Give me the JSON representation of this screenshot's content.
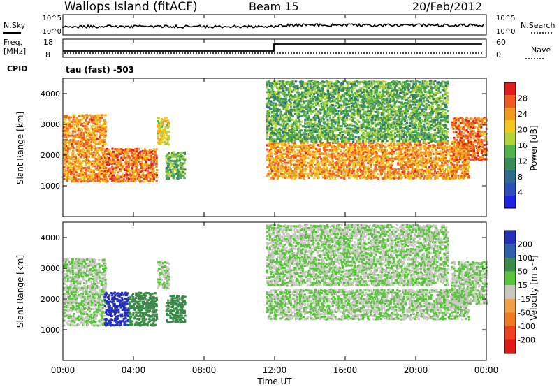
{
  "header": {
    "title": "Wallops Island (fitACF)",
    "beam": "Beam 15",
    "date": "20/Feb/2012"
  },
  "strips": {
    "nsky_label": "N.Sky",
    "nsky_ticks": [
      "10^5",
      "10^0"
    ],
    "nsearch_label": "N.Search",
    "nsearch_ticks": [
      "10^5",
      "10^0"
    ],
    "freq_label_1": "Freq.",
    "freq_label_2": "[MHz]",
    "freq_ticks": [
      "18",
      "8"
    ],
    "nave_label": "Nave",
    "nave_ticks": [
      "60",
      "0"
    ],
    "cpid_label": "CPID",
    "cpid_value": "tau (fast) -503"
  },
  "colors": {
    "power": [
      "#1f23e0",
      "#2a4fb8",
      "#2e6a8c",
      "#3c8c5a",
      "#52b34a",
      "#b4d23c",
      "#f2c81e",
      "#f29a1e",
      "#ef5a1e",
      "#e21b1b"
    ],
    "velocity": [
      "#2430b8",
      "#2f5fa8",
      "#3a8a48",
      "#57c43a",
      "#c8c8c0",
      "#f0a048",
      "#f07a20",
      "#ef4020",
      "#e01818"
    ],
    "line": "#000000"
  },
  "chart_data": [
    {
      "type": "heatmap",
      "panel": "power",
      "ylabel": "Slant Range [km]",
      "yticks": [
        "1000",
        "2000",
        "3000",
        "4000"
      ],
      "ylim": [
        0,
        4500
      ],
      "xlim": [
        "00:00",
        "24:00"
      ],
      "colorbar_label": "Power [dB]",
      "colorbar_ticks": [
        "4",
        "8",
        "12",
        "16",
        "20",
        "24",
        "28"
      ],
      "colorbar_range": [
        0,
        32
      ],
      "regions": [
        {
          "t": [
            0.0,
            2.4
          ],
          "range": [
            1100,
            3300
          ],
          "value": 24
        },
        {
          "t": [
            2.3,
            5.3
          ],
          "range": [
            1100,
            2200
          ],
          "value": 26
        },
        {
          "t": [
            5.3,
            6.0
          ],
          "range": [
            2300,
            3200
          ],
          "value": 20
        },
        {
          "t": [
            5.8,
            6.9
          ],
          "range": [
            1200,
            2100
          ],
          "value": 14
        },
        {
          "t": [
            11.5,
            23.0
          ],
          "range": [
            1200,
            2400
          ],
          "value": 24
        },
        {
          "t": [
            11.5,
            21.8
          ],
          "range": [
            2400,
            4400
          ],
          "value": 14
        },
        {
          "t": [
            22.0,
            24.0
          ],
          "range": [
            1800,
            3200
          ],
          "value": 26
        }
      ]
    },
    {
      "type": "heatmap",
      "panel": "velocity",
      "ylabel": "Slant Range [km]",
      "yticks": [
        "1000",
        "2000",
        "3000",
        "4000"
      ],
      "ylim": [
        0,
        4500
      ],
      "xlim": [
        "00:00",
        "24:00"
      ],
      "xlabel": "Time UT",
      "xticks": [
        "00:00",
        "04:00",
        "08:00",
        "12:00",
        "16:00",
        "20:00",
        "00:00"
      ],
      "colorbar_label": "Velocity [m s⁻¹]",
      "colorbar_ticks": [
        "200",
        "100",
        "50",
        "15",
        "-15",
        "-50",
        "-100",
        "-200"
      ],
      "regions": [
        {
          "t": [
            0.0,
            2.4
          ],
          "range": [
            1100,
            3300
          ],
          "value": 0
        },
        {
          "t": [
            2.3,
            3.7
          ],
          "range": [
            1100,
            2200
          ],
          "value": 180
        },
        {
          "t": [
            3.7,
            5.3
          ],
          "range": [
            1100,
            2200
          ],
          "value": 60
        },
        {
          "t": [
            5.3,
            6.0
          ],
          "range": [
            2300,
            3200
          ],
          "value": 0
        },
        {
          "t": [
            5.8,
            6.9
          ],
          "range": [
            1200,
            2100
          ],
          "value": 60
        },
        {
          "t": [
            11.5,
            23.0
          ],
          "range": [
            1300,
            2300
          ],
          "value": 0
        },
        {
          "t": [
            11.5,
            21.8
          ],
          "range": [
            2400,
            4400
          ],
          "value": 0
        },
        {
          "t": [
            22.0,
            24.0
          ],
          "range": [
            1800,
            3200
          ],
          "value": 0
        }
      ]
    }
  ]
}
